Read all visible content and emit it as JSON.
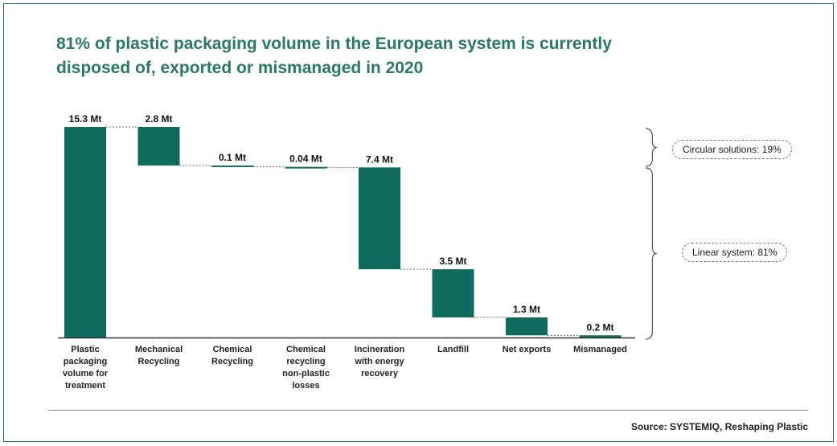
{
  "title": {
    "line1": "81% of plastic packaging volume in the European system is currently",
    "line2": "disposed of, exported or mismanaged in 2020"
  },
  "source": "Source: SYSTEMIQ, Reshaping Plastic",
  "groups": {
    "circular": "Circular solutions: 19%",
    "linear": "Linear system: 81%"
  },
  "colors": {
    "bar": "#0f6b5e",
    "title": "#2a7a5e",
    "connector": "#666666",
    "axis": "#333333"
  },
  "chart_data": {
    "type": "bar",
    "subtype": "waterfall",
    "unit": "Mt",
    "categories": [
      [
        "Plastic",
        "packaging",
        "volume for",
        "treatment"
      ],
      [
        "Mechanical",
        "Recycling"
      ],
      [
        "Chemical",
        "Recycling"
      ],
      [
        "Chemical",
        "recycling",
        "non-plastic",
        "losses"
      ],
      [
        "Incineration",
        "with energy",
        "recovery"
      ],
      [
        "Landfill"
      ],
      [
        "Net exports"
      ],
      [
        "Mismanaged"
      ]
    ],
    "values": [
      15.3,
      2.8,
      0.1,
      0.04,
      7.4,
      3.5,
      1.3,
      0.2
    ],
    "value_labels": [
      "15.3 Mt",
      "2.8 Mt",
      "0.1 Mt",
      "0.04 Mt",
      "7.4 Mt",
      "3.5 Mt",
      "1.3 Mt",
      "0.2 Mt"
    ],
    "ylim": [
      0,
      15.3
    ],
    "grid": false,
    "legend": "none"
  }
}
